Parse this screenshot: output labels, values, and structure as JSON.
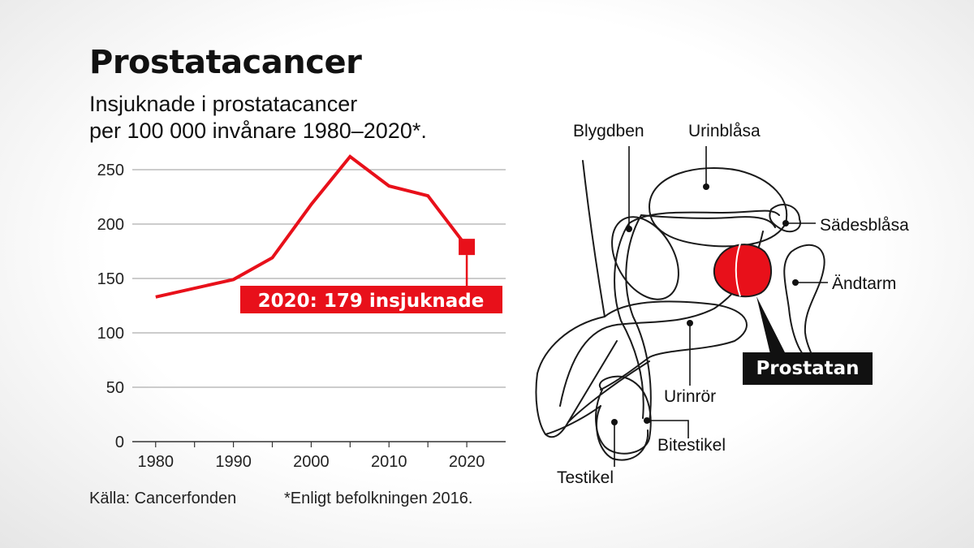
{
  "title": "Prostatacancer",
  "subtitle_line1": "Insjuknade i prostatacancer",
  "subtitle_line2": "per 100 000 invånare 1980–2020*.",
  "source": "Källa: Cancerfonden",
  "footnote": "*Enligt befolkningen 2016.",
  "chart_data": {
    "type": "line",
    "title": "Prostatacancer",
    "subtitle": "Insjuknade i prostatacancer per 100 000 invånare 1980–2020*.",
    "x": [
      1980,
      1990,
      1995,
      2000,
      2005,
      2010,
      2015,
      2020
    ],
    "series": [
      {
        "values": [
          133,
          149,
          169,
          218,
          262,
          235,
          226,
          179
        ]
      }
    ],
    "xlim": [
      1977,
      2025
    ],
    "ylim": [
      0,
      250
    ],
    "yticks": [
      0,
      50,
      100,
      150,
      200,
      250
    ],
    "xticks": [
      1980,
      1990,
      2000,
      2010,
      2020
    ],
    "grid": true,
    "line_color": "#e8101a",
    "annotation": {
      "x": 2020,
      "y": 179,
      "text": "2020: 179 insjuknade",
      "color": "#e8101a"
    }
  },
  "diagram": {
    "labels": {
      "blygdben": "Blygdben",
      "urinblasa": "Urinblåsa",
      "sadesblasa": "Sädesblåsa",
      "andtarm": "Ändtarm",
      "prostatan": "Prostatan",
      "urinror": "Urinrör",
      "bitestikel": "Bitestikel",
      "testikel": "Testikel"
    },
    "highlight_color": "#e8101a"
  }
}
